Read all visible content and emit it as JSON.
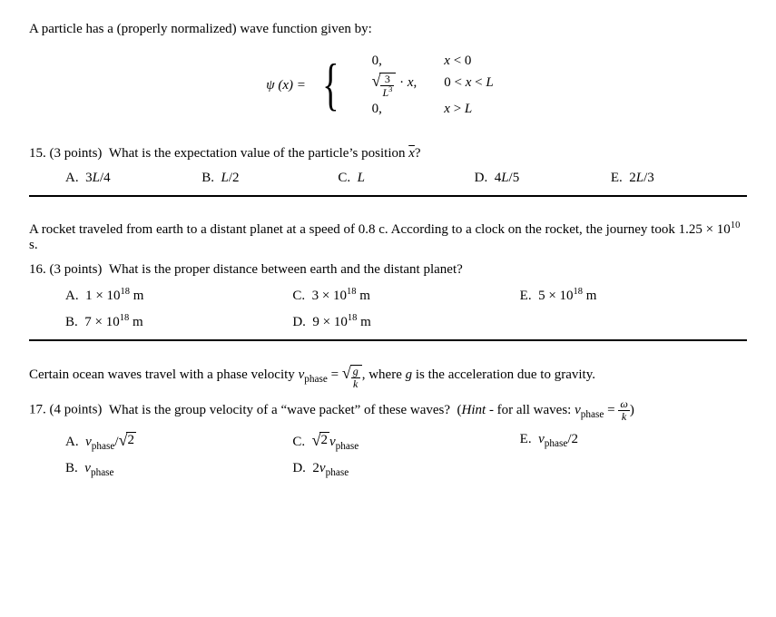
{
  "block1": {
    "intro": "A particle has a (properly normalized) wave function given by:",
    "psi_lhs": "ψ (x) =",
    "cases": [
      {
        "expr": "0,",
        "cond_html": "<span class='ital'>x</span> &lt; 0"
      },
      {
        "expr_html": "<span class='sqrt'><span class='sign'>√</span><span class='rad'><span class='frac'><span class='num'>3</span><span class='den'><span class='ital'>L</span><sup>3</sup></span></span></span></span> · <span class='ital'>x</span>,",
        "cond_html": "0 &lt; <span class='ital'>x</span> &lt; <span class='ital'>L</span>"
      },
      {
        "expr": "0,",
        "cond_html": "<span class='ital'>x</span> &gt; <span class='ital'>L</span>"
      }
    ],
    "q15": {
      "prefix": "15.  (3 points)",
      "text_html": "What is the expectation value of the particle’s position <span class='bar ital'>x</span>?",
      "options": [
        {
          "label": "A.",
          "val_html": "3<span class='ital'>L</span>/4"
        },
        {
          "label": "B.",
          "val_html": "<span class='ital'>L</span>/2"
        },
        {
          "label": "C.",
          "val_html": "<span class='ital'>L</span>"
        },
        {
          "label": "D.",
          "val_html": "4<span class='ital'>L</span>/5"
        },
        {
          "label": "E.",
          "val_html": "2<span class='ital'>L</span>/3"
        }
      ]
    }
  },
  "block2": {
    "intro_html": "A rocket traveled from earth to a distant planet at a speed of 0.8 c.  According to a clock on the rocket, the journey took 1.25 × 10<sup>10</sup> s.",
    "q16": {
      "prefix": "16.  (3 points)",
      "text": "What is the proper distance between earth and the distant planet?",
      "options": [
        {
          "label": "A.",
          "val_html": "1 × 10<sup>18</sup> m"
        },
        {
          "label": "B.",
          "val_html": "7 × 10<sup>18</sup> m"
        },
        {
          "label": "C.",
          "val_html": "3 × 10<sup>18</sup> m"
        },
        {
          "label": "D.",
          "val_html": "9 × 10<sup>18</sup> m"
        },
        {
          "label": "E.",
          "val_html": "5 × 10<sup>18</sup> m"
        }
      ]
    }
  },
  "block3": {
    "intro_html": "Certain ocean waves travel with a phase velocity <span class='ital'>v</span><sub>phase</sub> = <span class='sqrt'><span class='sign'>√</span><span class='rad'><span class='frac'><span class='num ital'>g</span><span class='den ital'>k</span></span></span></span>, where <span class='ital'>g</span> is the acceleration due to gravity.",
    "q17": {
      "prefix": "17.  (4 points)",
      "text_html": "What is the group velocity of a “wave packet” of these waves?&nbsp;&nbsp;(<span class='ital'>Hint</span> - for all waves: <span class='ital'>v</span><sub>phase</sub> = <span class='frac'><span class='num ital'>ω</span><span class='den ital'>k</span></span>)",
      "options": [
        {
          "label": "A.",
          "val_html": "<span class='ital'>v</span><sub>phase</sub>/<span class='sqrt'><span class='sign'>√</span><span class='rad'>2</span></span>"
        },
        {
          "label": "B.",
          "val_html": "<span class='ital'>v</span><sub>phase</sub>"
        },
        {
          "label": "C.",
          "val_html": "<span class='sqrt'><span class='sign'>√</span><span class='rad'>2</span></span><span class='ital'>v</span><sub>phase</sub>"
        },
        {
          "label": "D.",
          "val_html": "2<span class='ital'>v</span><sub>phase</sub>"
        },
        {
          "label": "E.",
          "val_html": "<span class='ital'>v</span><sub>phase</sub>/2"
        }
      ]
    }
  }
}
